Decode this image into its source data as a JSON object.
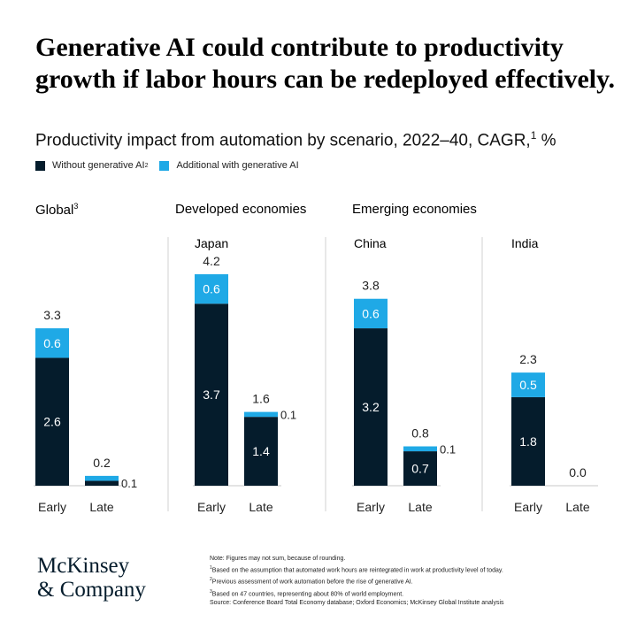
{
  "headline": "Generative AI could contribute to productivity growth if labor hours can be redeployed effectively.",
  "subtitle": {
    "text": "Productivity impact from automation by scenario, 2022–40, CAGR,",
    "sup": "1",
    "unit": " %"
  },
  "legend": {
    "without": {
      "label": "Without generative AI",
      "sup": "2",
      "color": "#051c2c"
    },
    "additional": {
      "label": "Additional with generative AI",
      "color": "#1fa9e6"
    }
  },
  "sections": {
    "global": {
      "label": "Global",
      "sup": "3"
    },
    "developed": {
      "label": "Developed economies"
    },
    "emerging": {
      "label": "Emerging economies"
    }
  },
  "chart_data": {
    "type": "bar",
    "stacked": true,
    "categories": [
      "Early",
      "Late"
    ],
    "ylim": [
      0,
      4.5
    ],
    "grid": false,
    "legend_position": "top-left",
    "panels": [
      {
        "name": "Global",
        "section": "Global",
        "series": [
          {
            "name": "Without generative AI",
            "values": [
              2.6,
              0.1
            ]
          },
          {
            "name": "Additional with generative AI",
            "values": [
              0.6,
              0.1
            ]
          }
        ],
        "totals": [
          3.3,
          0.2
        ]
      },
      {
        "name": "Japan",
        "section": "Developed economies",
        "series": [
          {
            "name": "Without generative AI",
            "values": [
              3.7,
              1.4
            ]
          },
          {
            "name": "Additional with generative AI",
            "values": [
              0.6,
              0.1
            ]
          }
        ],
        "totals": [
          4.2,
          1.6
        ]
      },
      {
        "name": "China",
        "section": "Emerging economies",
        "series": [
          {
            "name": "Without generative AI",
            "values": [
              3.2,
              0.7
            ]
          },
          {
            "name": "Additional with generative AI",
            "values": [
              0.6,
              0.1
            ]
          }
        ],
        "totals": [
          3.8,
          0.8
        ]
      },
      {
        "name": "India",
        "section": "Emerging economies",
        "series": [
          {
            "name": "Without generative AI",
            "values": [
              1.8,
              0.0
            ]
          },
          {
            "name": "Additional with generative AI",
            "values": [
              0.5,
              0.0
            ]
          }
        ],
        "totals": [
          2.3,
          0.0
        ]
      }
    ]
  },
  "brand": {
    "line1": "McKinsey",
    "line2": "& Company"
  },
  "notes": {
    "note": "Note: Figures may not sum, because of rounding.",
    "fn1": {
      "sup": "1",
      "text": "Based on the assumption that automated work hours are reintegrated in work at productivity level of today."
    },
    "fn2": {
      "sup": "2",
      "text": "Previous assessment of work automation before the rise of generative AI."
    },
    "fn3": {
      "sup": "3",
      "text": "Based on 47 countries, representing about 80% of world employment."
    },
    "source": "Source: Conference Board Total Economy database; Oxford Economics; McKinsey Global Institute analysis"
  }
}
